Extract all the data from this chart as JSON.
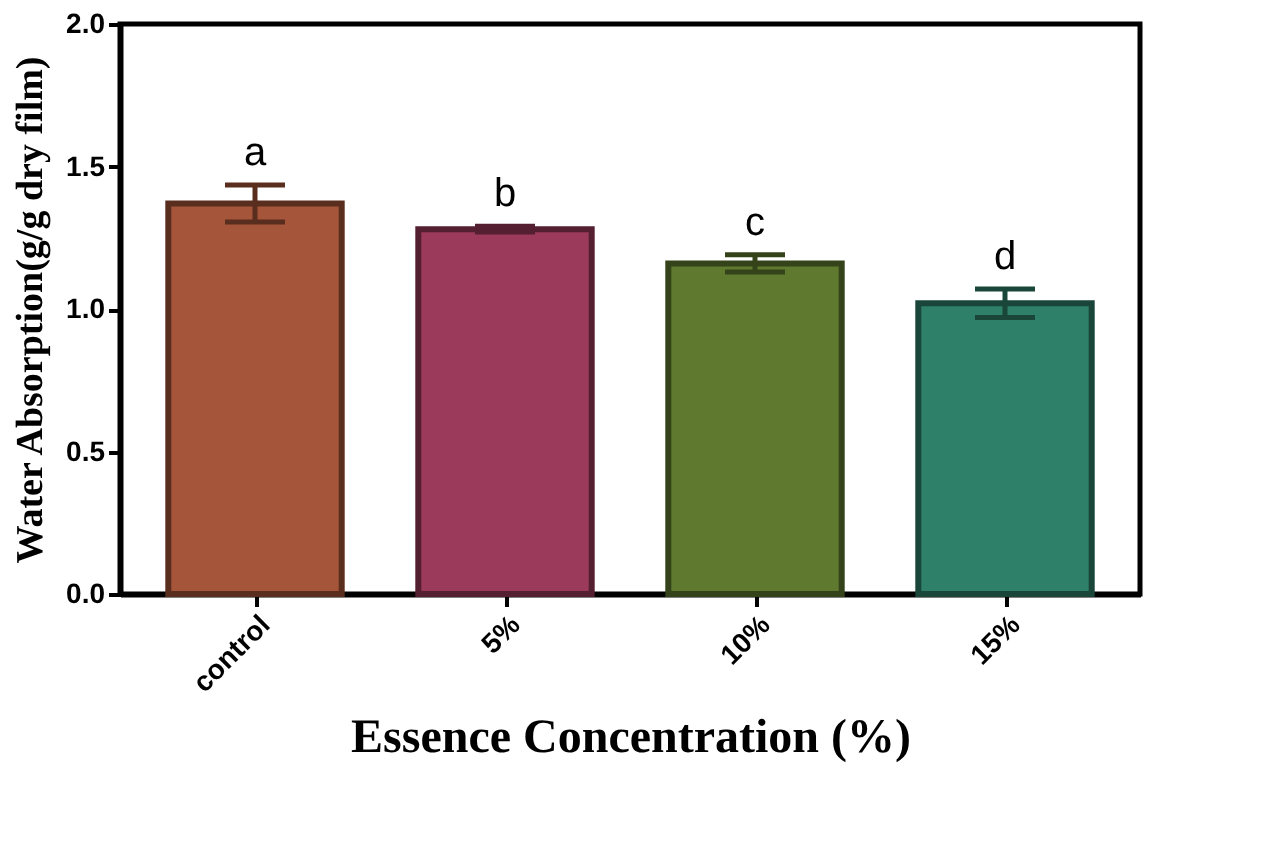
{
  "chart_data": {
    "type": "bar",
    "xlabel": "Essence Concentration (%)",
    "ylabel": "Water Absorption(g/g dry film)",
    "categories": [
      "control",
      "5%",
      "10%",
      "15%"
    ],
    "values": [
      1.37,
      1.28,
      1.16,
      1.02
    ],
    "errors": [
      0.065,
      0.01,
      0.03,
      0.05
    ],
    "colors": [
      "#a5553a",
      "#9c3a5c",
      "#5f7a2e",
      "#2e8068"
    ],
    "ylim": [
      0,
      2.0
    ],
    "yticks": [
      {
        "value": 0,
        "label": "0.0"
      },
      0.5,
      {
        "value": 1,
        "label": "1.0"
      },
      1.5,
      {
        "value": 2,
        "label": "2.0"
      }
    ],
    "annotations": [
      "a",
      "b",
      "c",
      "d"
    ],
    "grid": false
  }
}
